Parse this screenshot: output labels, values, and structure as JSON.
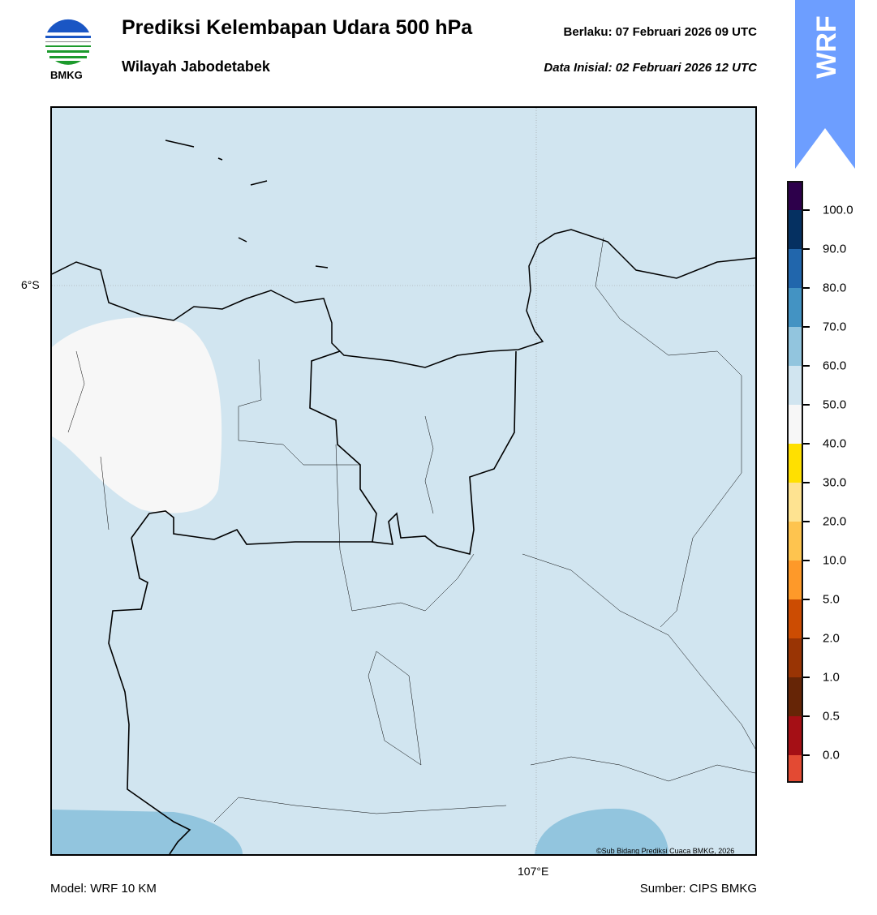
{
  "header": {
    "title": "Prediksi Kelembapan Udara 500 hPa",
    "subtitle": "Wilayah Jabodetabek",
    "valid": "Berlaku:  07 Februari 2026 09 UTC",
    "initial": "Data Inisial:  02 Februari 2026 12 UTC",
    "logo_text": "BMKG",
    "badge": "WRF"
  },
  "map": {
    "lat_label": "6°S",
    "lon_label": "107°E",
    "copyright": "©Sub Bidang Prediksi Cuaca BMKG, 2026",
    "colors": {
      "background": "#d1e5f0",
      "dry_patch": "#f7f7f7",
      "wet_patch": "#92c5de"
    }
  },
  "footer": {
    "model": "Model: WRF 10 KM",
    "source": "Sumber: CIPS BMKG"
  },
  "colorbar": {
    "ticks": [
      "100.0",
      "90.0",
      "80.0",
      "70.0",
      "60.0",
      "50.0",
      "40.0",
      "30.0",
      "20.0",
      "10.0",
      "5.0",
      "2.0",
      "1.0",
      "0.5",
      "0.0"
    ],
    "colors": [
      "#2d004b",
      "#053061",
      "#2166ac",
      "#4393c3",
      "#92c5de",
      "#d1e5f0",
      "#f7f7f7",
      "#ffe000",
      "#fee391",
      "#fec44f",
      "#fe9929",
      "#cc4c02",
      "#993404",
      "#662506",
      "#a50f15",
      "#e34a33"
    ]
  }
}
